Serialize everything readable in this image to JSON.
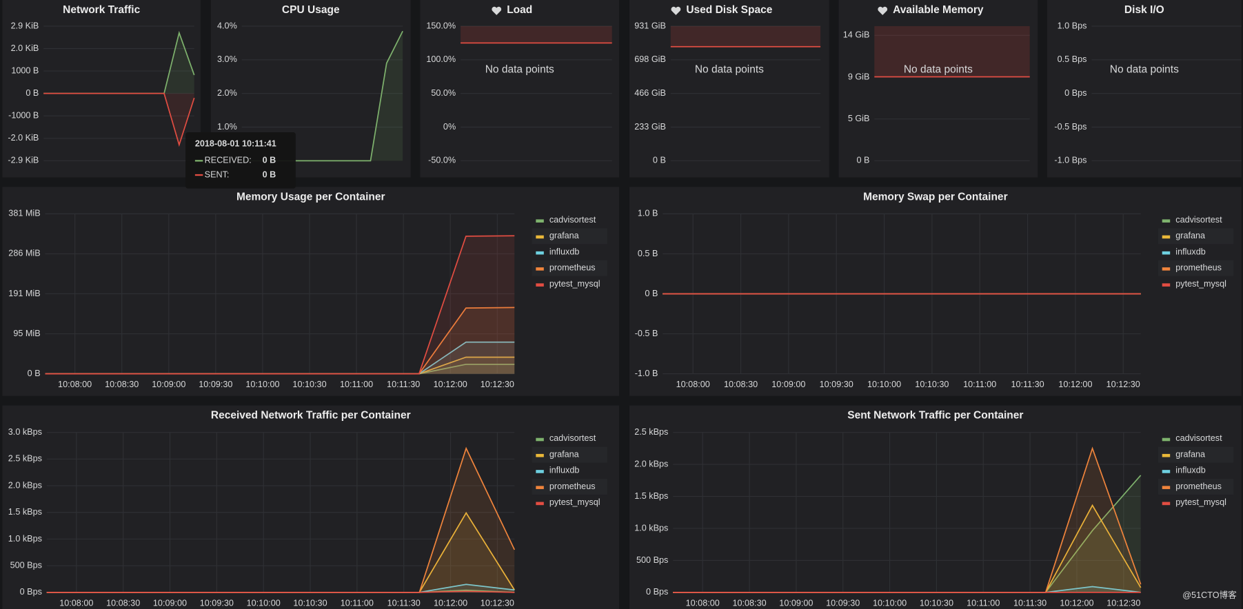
{
  "chart_data": [
    {
      "type": "line",
      "title": "Network Traffic",
      "ylim": [
        -3000,
        3000
      ],
      "yticks": [
        {
          "value": 3000,
          "label": "2.9 KiB"
        },
        {
          "value": 2000,
          "label": "2.0 KiB"
        },
        {
          "value": 1000,
          "label": "1000 B"
        },
        {
          "value": 0,
          "label": "0 B"
        },
        {
          "value": -1000,
          "label": "-1000 B"
        },
        {
          "value": -2000,
          "label": "-2.0 KiB"
        },
        {
          "value": -3000,
          "label": "-2.9 KiB"
        }
      ],
      "series": [
        {
          "color": "#7eb26d",
          "values": [
            0,
            0,
            0,
            0,
            0,
            0,
            0,
            0,
            0,
            2700,
            820
          ]
        },
        {
          "color": "#e24d42",
          "values": [
            0,
            0,
            0,
            0,
            0,
            0,
            0,
            0,
            0,
            -2290,
            -200
          ]
        }
      ],
      "tooltip": {
        "time": "2018-08-01 10:11:41",
        "rows": [
          {
            "label": "RECEIVED:",
            "value": "0 B",
            "color": "#7eb26d"
          },
          {
            "label": "SENT:",
            "value": "0 B",
            "color": "#e24d42"
          }
        ]
      }
    },
    {
      "type": "line",
      "title": "CPU Usage",
      "ylim": [
        0,
        4
      ],
      "yticks": [
        {
          "value": 4,
          "label": "4.0%"
        },
        {
          "value": 3,
          "label": "3.0%"
        },
        {
          "value": 2,
          "label": "2.0%"
        },
        {
          "value": 1,
          "label": "1.0%"
        }
      ],
      "series": [
        {
          "color": "#7eb26d",
          "values": [
            0,
            0,
            0,
            0,
            0,
            0,
            0,
            0,
            0,
            2.9,
            3.85
          ]
        }
      ]
    },
    {
      "type": "line",
      "title": "Load",
      "icon": "heart",
      "ylim": [
        -50,
        150
      ],
      "yticks": [
        {
          "value": 150,
          "label": "150.0%"
        },
        {
          "value": 100,
          "label": "100.0%"
        },
        {
          "value": 50,
          "label": "50.0%"
        },
        {
          "value": 0,
          "label": "0%"
        },
        {
          "value": -50,
          "label": "-50.0%"
        }
      ],
      "threshold": 125,
      "message": "No data points"
    },
    {
      "type": "line",
      "title": "Used Disk Space",
      "icon": "heart",
      "ylim": [
        0,
        931
      ],
      "yticks": [
        {
          "value": 931,
          "label": "931 GiB"
        },
        {
          "value": 698.25,
          "label": "698 GiB"
        },
        {
          "value": 465.5,
          "label": "466 GiB"
        },
        {
          "value": 232.75,
          "label": "233 GiB"
        },
        {
          "value": 0,
          "label": "0 B"
        }
      ],
      "threshold": 789,
      "message": "No data points"
    },
    {
      "type": "line",
      "title": "Available Memory",
      "icon": "heart",
      "ylim": [
        0,
        15
      ],
      "yticks": [
        {
          "value": 13.97,
          "label": "14 GiB"
        },
        {
          "value": 9.31,
          "label": "9 GiB"
        },
        {
          "value": 4.66,
          "label": "5 GiB"
        },
        {
          "value": 0,
          "label": "0 B"
        }
      ],
      "threshold": 9.35,
      "message": "No data points"
    },
    {
      "type": "line",
      "title": "Disk I/O",
      "ylim": [
        -1,
        1
      ],
      "yticks": [
        {
          "value": 1,
          "label": "1.0 Bps"
        },
        {
          "value": 0.5,
          "label": "0.5 Bps"
        },
        {
          "value": 0,
          "label": "0 Bps"
        },
        {
          "value": -0.5,
          "label": "-0.5 Bps"
        },
        {
          "value": -1,
          "label": "-1.0 Bps"
        }
      ],
      "message": "No data points"
    },
    {
      "type": "line",
      "title": "Memory Usage per Container",
      "legend": "right",
      "ylim": [
        0,
        381.3
      ],
      "yticks": [
        {
          "value": 381.3,
          "label": "381 MiB"
        },
        {
          "value": 286,
          "label": "286 MiB"
        },
        {
          "value": 190.7,
          "label": "191 MiB"
        },
        {
          "value": 95.3,
          "label": "95 MiB"
        },
        {
          "value": 0,
          "label": "0 B"
        }
      ],
      "xlim": [
        "10:07:41",
        "10:12:41"
      ],
      "xticks": [
        "10:08:00",
        "10:08:30",
        "10:09:00",
        "10:09:30",
        "10:10:00",
        "10:10:30",
        "10:11:00",
        "10:11:30",
        "10:12:00",
        "10:12:30"
      ],
      "x": [
        "10:07:41",
        "10:11:40",
        "10:12:10",
        "10:12:41"
      ],
      "series": [
        {
          "name": "cadvisortest",
          "color": "#7eb26d",
          "values": [
            0,
            0,
            22.6,
            22.6
          ]
        },
        {
          "name": "grafana",
          "color": "#eab839",
          "values": [
            0,
            0,
            39.6,
            39.6
          ]
        },
        {
          "name": "influxdb",
          "color": "#6ed0e0",
          "values": [
            0,
            0,
            75.5,
            75.5
          ]
        },
        {
          "name": "prometheus",
          "color": "#ef843c",
          "values": [
            0,
            0,
            156.7,
            158
          ]
        },
        {
          "name": "pytest_mysql",
          "color": "#e24d42",
          "values": [
            0,
            0,
            328,
            329
          ]
        }
      ]
    },
    {
      "type": "line",
      "title": "Memory Swap per Container",
      "legend": "right",
      "ylim": [
        -1,
        1
      ],
      "yticks": [
        {
          "value": 1,
          "label": "1.0 B"
        },
        {
          "value": 0.5,
          "label": "0.5 B"
        },
        {
          "value": 0,
          "label": "0 B"
        },
        {
          "value": -0.5,
          "label": "-0.5 B"
        },
        {
          "value": -1,
          "label": "-1.0 B"
        }
      ],
      "xlim": [
        "10:07:41",
        "10:12:41"
      ],
      "xticks": [
        "10:08:00",
        "10:08:30",
        "10:09:00",
        "10:09:30",
        "10:10:00",
        "10:10:30",
        "10:11:00",
        "10:11:30",
        "10:12:00",
        "10:12:30"
      ],
      "x": [
        "10:07:41",
        "10:11:40",
        "10:12:10",
        "10:12:41"
      ],
      "series": [
        {
          "name": "cadvisortest",
          "color": "#7eb26d",
          "values": [
            0,
            0,
            0,
            0
          ]
        },
        {
          "name": "grafana",
          "color": "#eab839",
          "values": [
            0,
            0,
            0,
            0
          ]
        },
        {
          "name": "influxdb",
          "color": "#6ed0e0",
          "values": [
            0,
            0,
            0,
            0
          ]
        },
        {
          "name": "prometheus",
          "color": "#ef843c",
          "values": [
            0,
            0,
            0,
            0
          ]
        },
        {
          "name": "pytest_mysql",
          "color": "#e24d42",
          "values": [
            0,
            0,
            0,
            0
          ]
        }
      ]
    },
    {
      "type": "line",
      "title": "Received Network Traffic per Container",
      "legend": "right",
      "ylim": [
        0,
        3000
      ],
      "yticks": [
        {
          "value": 3000,
          "label": "3.0 kBps"
        },
        {
          "value": 2500,
          "label": "2.5 kBps"
        },
        {
          "value": 2000,
          "label": "2.0 kBps"
        },
        {
          "value": 1500,
          "label": "1.5 kBps"
        },
        {
          "value": 1000,
          "label": "1.0 kBps"
        },
        {
          "value": 500,
          "label": "500 Bps"
        },
        {
          "value": 0,
          "label": "0 Bps"
        }
      ],
      "xlim": [
        "10:07:41",
        "10:12:41"
      ],
      "xticks": [
        "10:08:00",
        "10:08:30",
        "10:09:00",
        "10:09:30",
        "10:10:00",
        "10:10:30",
        "10:11:00",
        "10:11:30",
        "10:12:00",
        "10:12:30"
      ],
      "x": [
        "10:07:41",
        "10:11:40",
        "10:12:10",
        "10:12:41"
      ],
      "series": [
        {
          "name": "cadvisortest",
          "color": "#7eb26d",
          "values": [
            0,
            0,
            40,
            0
          ]
        },
        {
          "name": "grafana",
          "color": "#eab839",
          "values": [
            0,
            0,
            1490,
            45
          ]
        },
        {
          "name": "influxdb",
          "color": "#6ed0e0",
          "values": [
            0,
            0,
            150,
            45
          ]
        },
        {
          "name": "prometheus",
          "color": "#ef843c",
          "values": [
            0,
            0,
            2700,
            800
          ]
        },
        {
          "name": "pytest_mysql",
          "color": "#e24d42",
          "values": [
            0,
            0,
            20,
            0
          ]
        }
      ]
    },
    {
      "type": "line",
      "title": "Sent Network Traffic per Container",
      "legend": "right",
      "ylim": [
        0,
        2500
      ],
      "yticks": [
        {
          "value": 2500,
          "label": "2.5 kBps"
        },
        {
          "value": 2000,
          "label": "2.0 kBps"
        },
        {
          "value": 1500,
          "label": "1.5 kBps"
        },
        {
          "value": 1000,
          "label": "1.0 kBps"
        },
        {
          "value": 500,
          "label": "500 Bps"
        },
        {
          "value": 0,
          "label": "0 Bps"
        }
      ],
      "xlim": [
        "10:07:41",
        "10:12:41"
      ],
      "xticks": [
        "10:08:00",
        "10:08:30",
        "10:09:00",
        "10:09:30",
        "10:10:00",
        "10:10:30",
        "10:11:00",
        "10:11:30",
        "10:12:00",
        "10:12:30"
      ],
      "x": [
        "10:07:41",
        "10:11:40",
        "10:12:10",
        "10:12:41"
      ],
      "series": [
        {
          "name": "cadvisortest",
          "color": "#7eb26d",
          "values": [
            0,
            0,
            965,
            1830
          ]
        },
        {
          "name": "grafana",
          "color": "#eab839",
          "values": [
            0,
            0,
            1360,
            75
          ]
        },
        {
          "name": "influxdb",
          "color": "#6ed0e0",
          "values": [
            0,
            0,
            90,
            0
          ]
        },
        {
          "name": "prometheus",
          "color": "#ef843c",
          "values": [
            0,
            0,
            2250,
            125
          ]
        },
        {
          "name": "pytest_mysql",
          "color": "#e24d42",
          "values": [
            0,
            0,
            0,
            0
          ]
        }
      ]
    }
  ],
  "watermark": "@51CTO博客"
}
